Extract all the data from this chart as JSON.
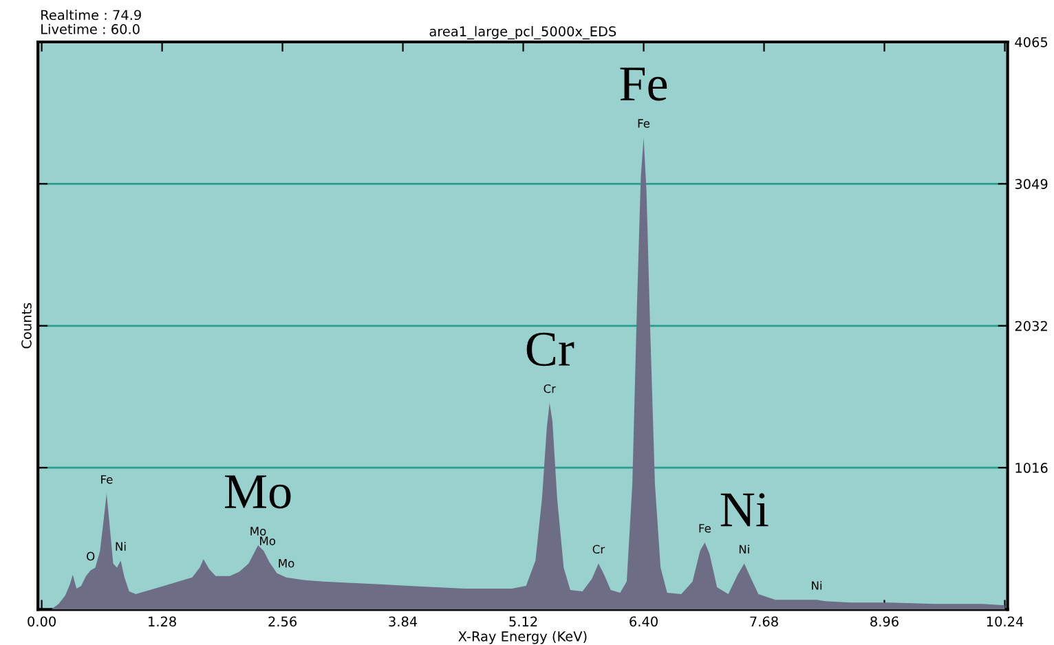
{
  "chart_data": {
    "type": "area",
    "title": "area1_large_pcl_5000x_EDS",
    "xlabel": "X-Ray Energy (KeV)",
    "ylabel": "Counts",
    "annotations": [
      "Realtime : 74.9",
      "Livetime : 60.0",
      {
        "text": "O",
        "x": 0.52,
        "y": 280
      },
      {
        "text": "Fe",
        "x": 0.69,
        "y": 830
      },
      {
        "text": "Ni",
        "x": 0.84,
        "y": 350
      },
      {
        "text": "Mo",
        "x": 2.3,
        "y": 460
      },
      {
        "text": "Mo",
        "x": 2.4,
        "y": 390
      },
      {
        "text": "Mo",
        "x": 2.6,
        "y": 230
      },
      {
        "text": "Cr",
        "x": 5.4,
        "y": 1480
      },
      {
        "text": "Cr",
        "x": 5.92,
        "y": 330
      },
      {
        "text": "Fe",
        "x": 6.4,
        "y": 3380
      },
      {
        "text": "Fe",
        "x": 7.05,
        "y": 480
      },
      {
        "text": "Ni",
        "x": 7.47,
        "y": 330
      },
      {
        "text": "Ni",
        "x": 8.24,
        "y": 70
      },
      {
        "text": "Mo",
        "x": 2.3,
        "y": 460
      },
      {
        "text": "Cr",
        "x": 5.4,
        "y": 1480
      },
      {
        "text": "Fe",
        "x": 6.4,
        "y": 3380
      },
      {
        "text": "Ni",
        "x": 7.47,
        "y": 330
      }
    ],
    "x": [
      0.0,
      0.1,
      0.18,
      0.25,
      0.3,
      0.33,
      0.37,
      0.42,
      0.47,
      0.52,
      0.57,
      0.62,
      0.66,
      0.69,
      0.72,
      0.76,
      0.8,
      0.84,
      0.88,
      0.93,
      1.0,
      1.15,
      1.3,
      1.45,
      1.6,
      1.68,
      1.72,
      1.78,
      1.85,
      2.0,
      2.1,
      2.2,
      2.3,
      2.36,
      2.42,
      2.5,
      2.6,
      2.8,
      3.0,
      3.3,
      3.6,
      3.9,
      4.2,
      4.5,
      4.8,
      5.0,
      5.15,
      5.25,
      5.32,
      5.37,
      5.4,
      5.43,
      5.48,
      5.55,
      5.62,
      5.75,
      5.85,
      5.92,
      5.98,
      6.05,
      6.15,
      6.22,
      6.28,
      6.33,
      6.37,
      6.4,
      6.43,
      6.47,
      6.52,
      6.58,
      6.65,
      6.8,
      6.92,
      7.0,
      7.05,
      7.1,
      7.18,
      7.3,
      7.4,
      7.47,
      7.53,
      7.62,
      7.8,
      8.0,
      8.15,
      8.24,
      8.33,
      8.6,
      9.0,
      9.5,
      10.0,
      10.24
    ],
    "series": [
      {
        "color": "#6e6d86",
        "values": [
          0,
          0,
          40,
          100,
          180,
          250,
          150,
          170,
          240,
          280,
          300,
          420,
          650,
          830,
          620,
          330,
          300,
          350,
          230,
          130,
          110,
          140,
          170,
          200,
          230,
          300,
          360,
          290,
          240,
          240,
          270,
          330,
          460,
          420,
          340,
          260,
          230,
          210,
          200,
          190,
          180,
          170,
          160,
          150,
          150,
          150,
          170,
          350,
          800,
          1300,
          1480,
          1350,
          800,
          300,
          140,
          130,
          220,
          330,
          250,
          140,
          120,
          200,
          900,
          2200,
          3100,
          3380,
          3000,
          2000,
          900,
          300,
          120,
          110,
          200,
          420,
          480,
          400,
          160,
          110,
          250,
          330,
          240,
          110,
          70,
          70,
          70,
          70,
          60,
          50,
          50,
          40,
          40,
          30
        ]
      }
    ],
    "xlim": [
      -0.04,
      10.27
    ],
    "ylim": [
      0,
      4065
    ],
    "xticks": [
      {
        "value": 0,
        "label": "0.00"
      },
      {
        "value": 1.28,
        "label": "1.28"
      },
      {
        "value": 2.56,
        "label": "2.56"
      },
      {
        "value": 3.84,
        "label": "3.84"
      },
      {
        "value": 5.12,
        "label": "5.12"
      },
      {
        "value": 6.4,
        "label": "6.40"
      },
      {
        "value": 7.68,
        "label": "7.68"
      },
      {
        "value": 8.96,
        "label": "8.96"
      },
      {
        "value": 10.24,
        "label": "10.24"
      }
    ],
    "yticks": [
      1016,
      2032,
      3049,
      4065
    ],
    "grid": "y"
  }
}
